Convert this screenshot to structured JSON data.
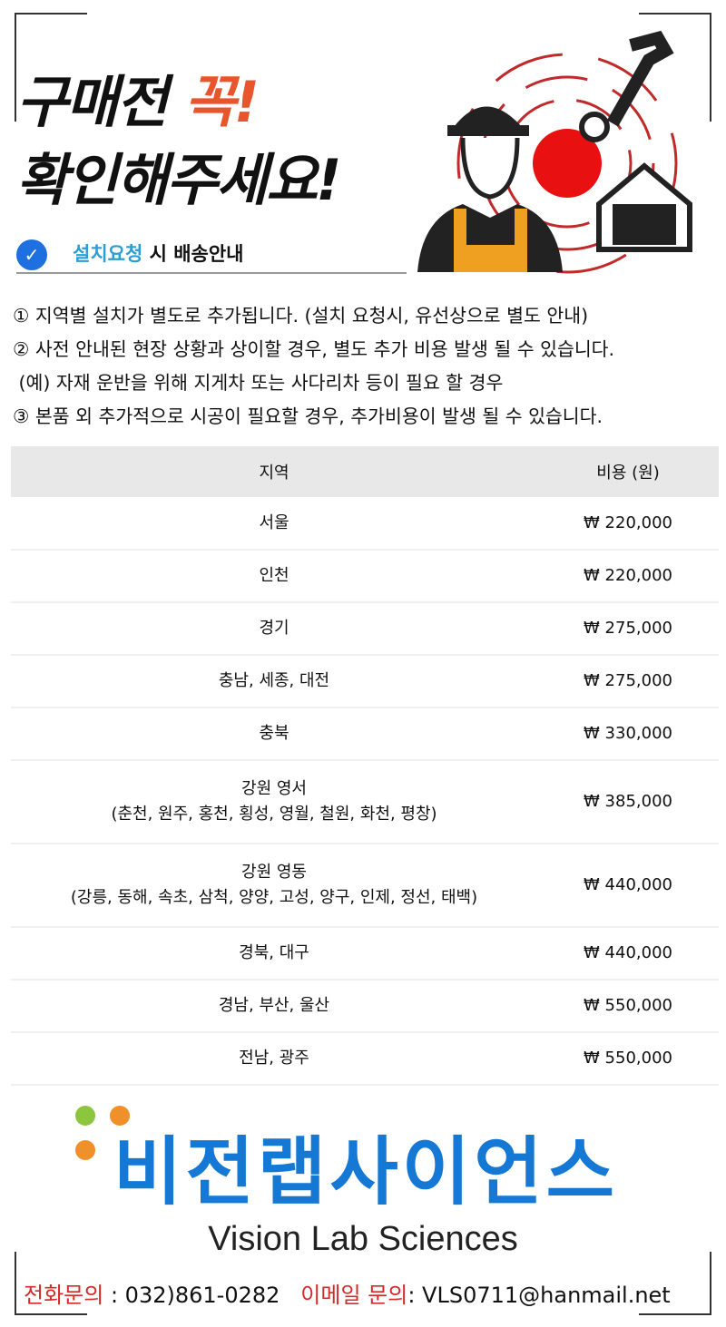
{
  "header": {
    "title_line1": "구매전",
    "title_accent": "꼭!",
    "title_line2": "확인해주세요!",
    "subtitle_highlight": "설치요청",
    "subtitle_rest": "시 배송안내",
    "accent_color": "#e8552c"
  },
  "notes": [
    "① 지역별 설치가 별도로 추가됩니다. (설치 요청시, 유선상으로 별도 안내)",
    "② 사전 안내된 현장 상황과 상이할 경우, 별도 추가 비용 발생 될 수 있습니다.",
    " (예) 자재 운반을 위해 지게차 또는 사다리차 등이 필요 할 경우",
    "③ 본품 외 추가적으로 시공이 필요할 경우, 추가비용이 발생 될 수 있습니다."
  ],
  "table": {
    "headers": [
      "지역",
      "비용 (원)"
    ],
    "rows": [
      {
        "region": "서울",
        "sub": "",
        "cost": "₩ 220,000"
      },
      {
        "region": "인천",
        "sub": "",
        "cost": "₩ 220,000"
      },
      {
        "region": "경기",
        "sub": "",
        "cost": "₩ 275,000"
      },
      {
        "region": "충남, 세종, 대전",
        "sub": "",
        "cost": "₩ 275,000"
      },
      {
        "region": "충북",
        "sub": "",
        "cost": "₩ 330,000"
      },
      {
        "region": "강원 영서",
        "sub": "(춘천, 원주, 홍천, 횡성, 영월, 철원, 화천, 평창)",
        "cost": "₩ 385,000"
      },
      {
        "region": "강원 영동",
        "sub": "(강릉, 동해, 속초, 삼척, 양양, 고성, 양구, 인제, 정선, 태백)",
        "cost": "₩ 440,000"
      },
      {
        "region": "경북, 대구",
        "sub": "",
        "cost": "₩ 440,000"
      },
      {
        "region": "경남, 부산, 울산",
        "sub": "",
        "cost": "₩ 550,000"
      },
      {
        "region": "전남, 광주",
        "sub": "",
        "cost": "₩ 550,000"
      }
    ]
  },
  "brand": {
    "name_ko": "비전랩사이언스",
    "name_en": "Vision Lab Sciences",
    "color": "#1478d4"
  },
  "contact": {
    "phone_label": "전화문의",
    "phone": ": 032)861-0282",
    "email_label": "이메일 문의",
    "email": ": VLS0711@hanmail.net"
  }
}
